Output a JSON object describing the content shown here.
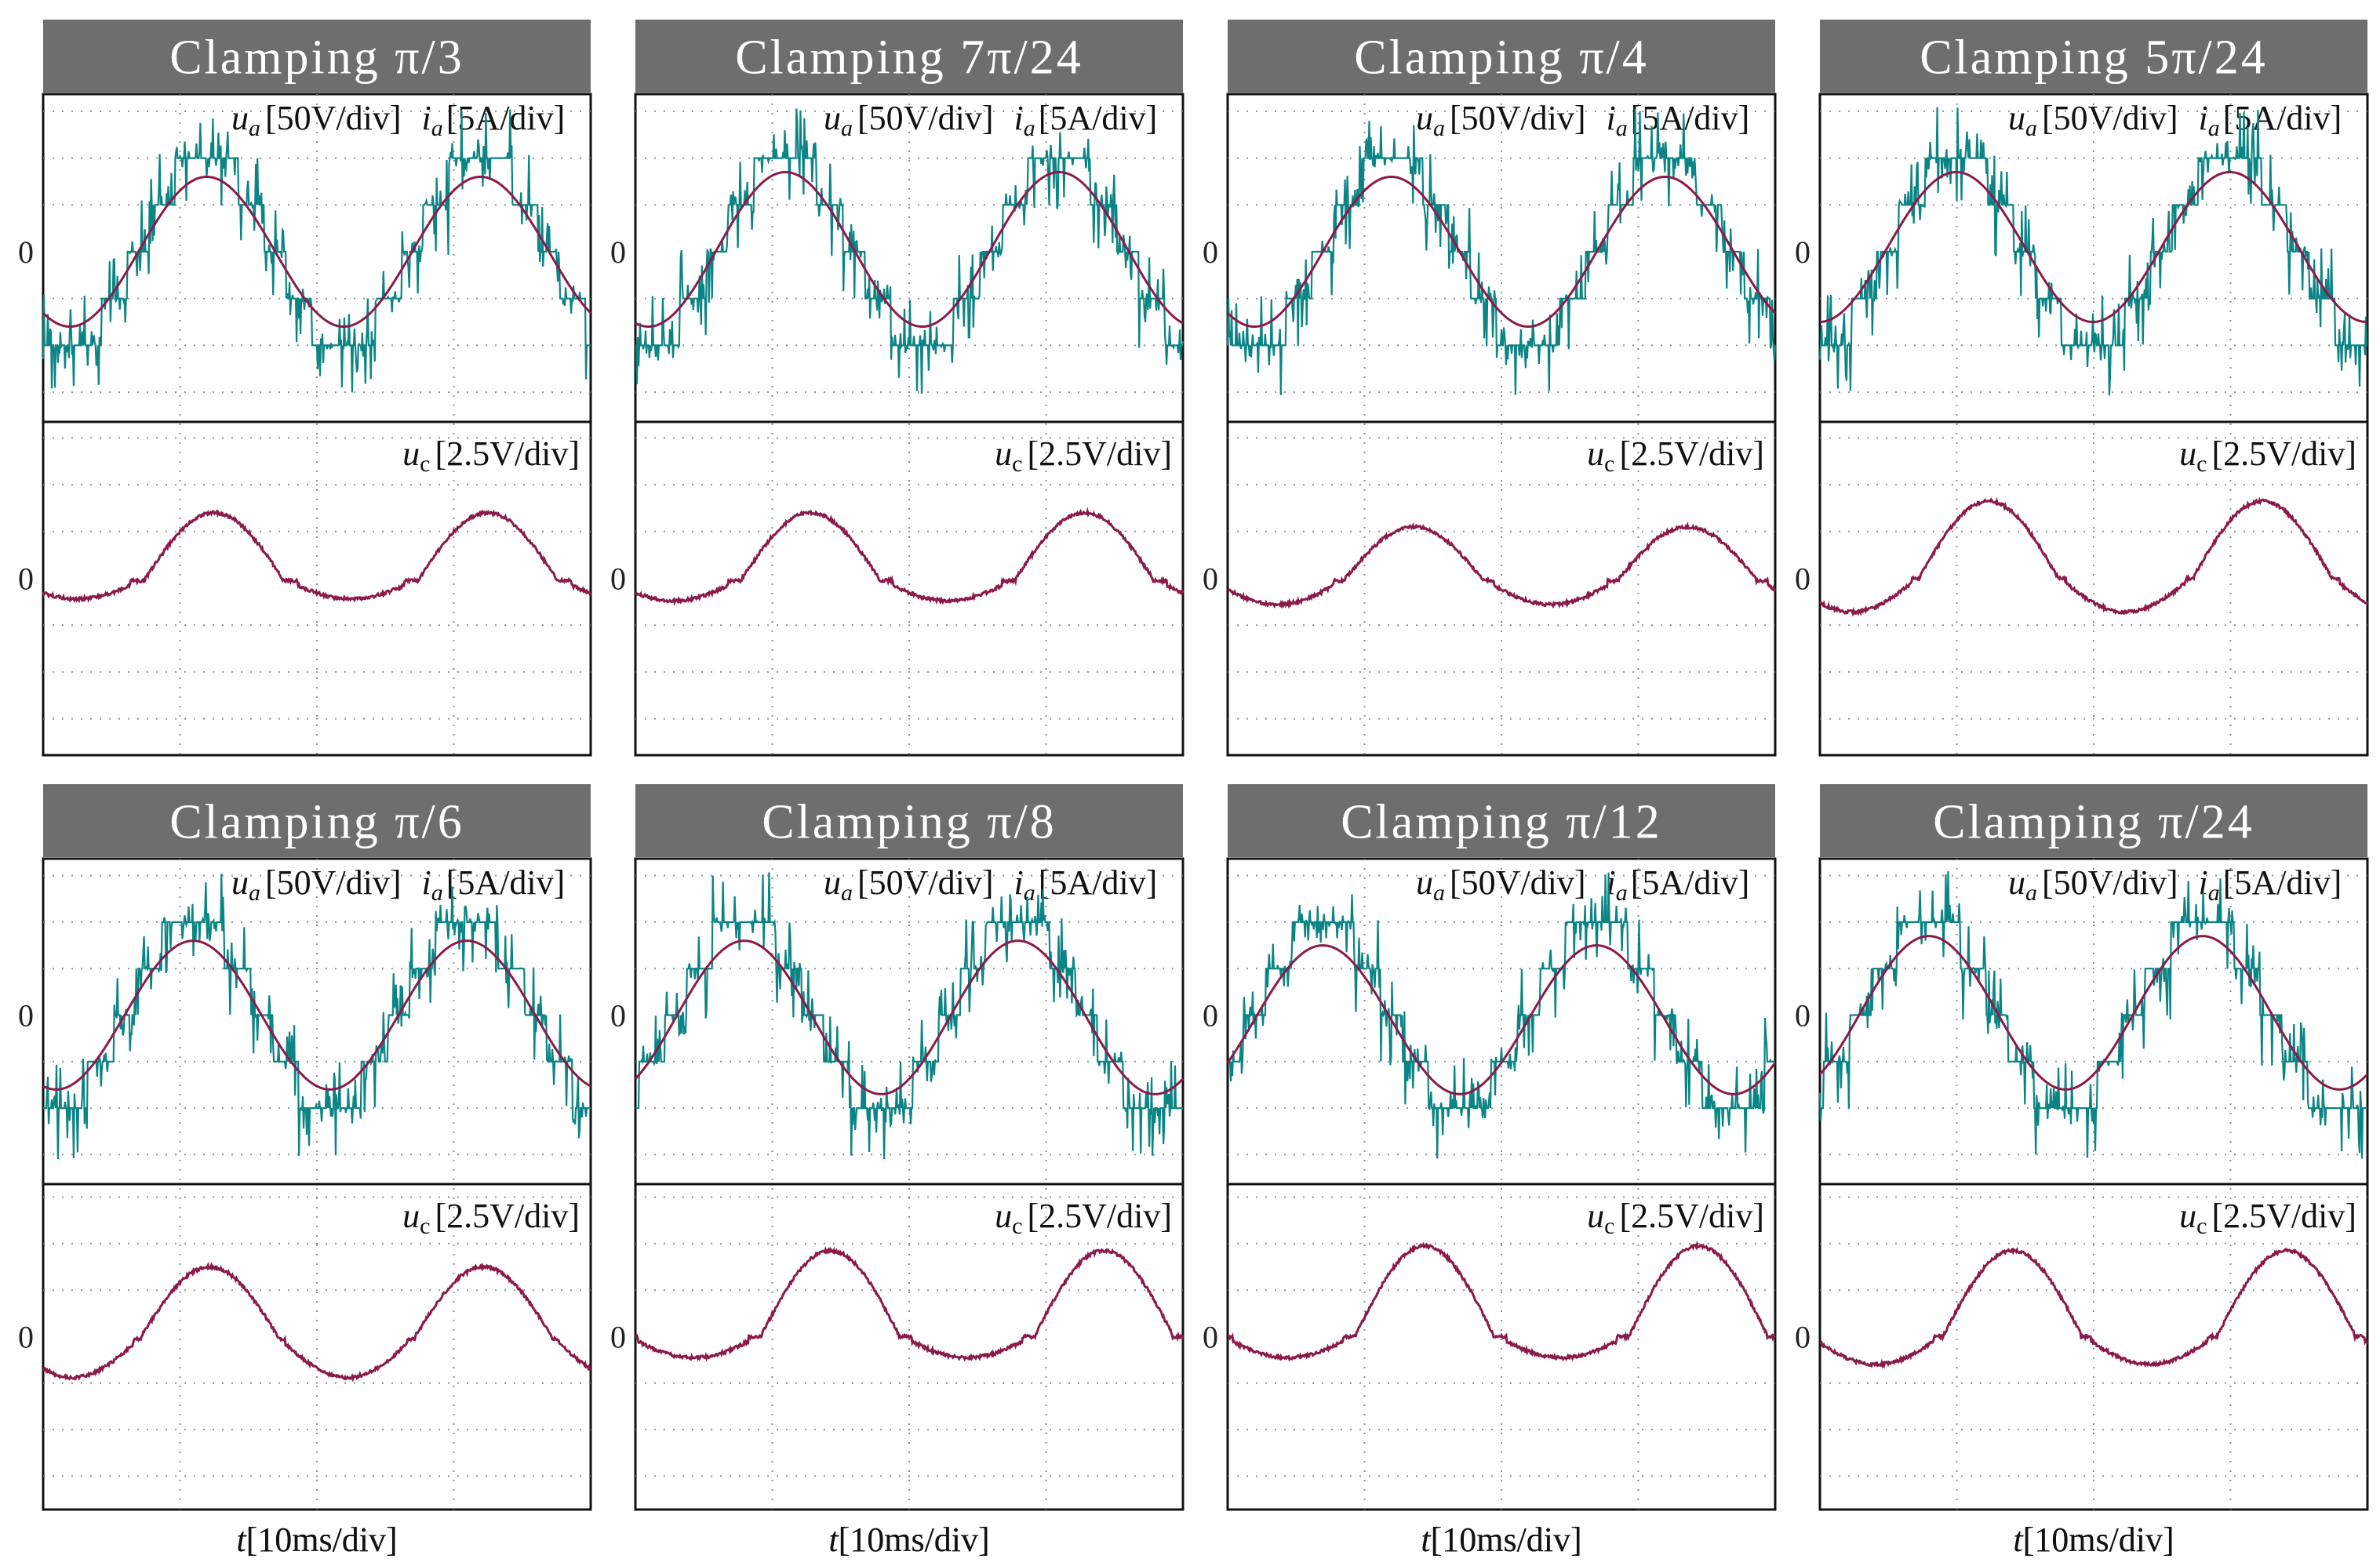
{
  "figure": {
    "voltage_unit_label": "[50V/div]",
    "current_unit_label": "[5A/div]",
    "cap_unit_label": "[2.5V/div]",
    "x_axis_label": "[10ms/div]",
    "zero_label": "0",
    "symbols": {
      "u": "u",
      "a": "a",
      "i": "i",
      "c": "c",
      "t": "t"
    }
  },
  "colors": {
    "phase_voltage": "#0a8484",
    "current": "#8b1a4a",
    "header_bg": "#6e6e6e",
    "grid": "#777777"
  },
  "chart_data": [
    {
      "type": "line",
      "title": "Clamping π/3",
      "clamp_angle": "π/3",
      "series": [
        {
          "name": "u_a",
          "unit": "50V/div"
        },
        {
          "name": "i_a",
          "unit": "5A/div",
          "peak_div": 1.6,
          "min_div": -1.6
        },
        {
          "name": "u_c",
          "unit": "2.5V/div",
          "peak_div": 1.4,
          "min_div": -0.5
        }
      ],
      "x_unit": "10ms/div",
      "xlim": [
        0,
        4
      ],
      "x_divs": 4,
      "period_ms": 20
    },
    {
      "type": "line",
      "title": "Clamping 7π/24",
      "clamp_angle": "7π/24",
      "series": [
        {
          "name": "u_a",
          "unit": "50V/div"
        },
        {
          "name": "i_a",
          "unit": "5A/div",
          "peak_div": 1.7,
          "min_div": -1.6
        },
        {
          "name": "u_c",
          "unit": "2.5V/div",
          "peak_div": 1.4,
          "min_div": -0.6
        }
      ],
      "x_unit": "10ms/div",
      "xlim": [
        0,
        4
      ],
      "x_divs": 4,
      "period_ms": 20
    },
    {
      "type": "line",
      "title": "Clamping π/4",
      "clamp_angle": "π/4",
      "series": [
        {
          "name": "u_a",
          "unit": "50V/div"
        },
        {
          "name": "i_a",
          "unit": "5A/div",
          "peak_div": 1.6,
          "min_div": -1.6
        },
        {
          "name": "u_c",
          "unit": "2.5V/div",
          "peak_div": 1.1,
          "min_div": -1.0
        }
      ],
      "x_unit": "10ms/div",
      "xlim": [
        0,
        4
      ],
      "x_divs": 4,
      "period_ms": 20
    },
    {
      "type": "line",
      "title": "Clamping 5π/24",
      "clamp_angle": "5π/24",
      "series": [
        {
          "name": "u_a",
          "unit": "50V/div"
        },
        {
          "name": "i_a",
          "unit": "5A/div",
          "peak_div": 1.7,
          "min_div": -1.5
        },
        {
          "name": "u_c",
          "unit": "2.5V/div",
          "peak_div": 1.6,
          "min_div": -0.8
        }
      ],
      "x_unit": "10ms/div",
      "xlim": [
        0,
        4
      ],
      "x_divs": 4,
      "period_ms": 20
    },
    {
      "type": "line",
      "title": "Clamping π/6",
      "clamp_angle": "π/6",
      "series": [
        {
          "name": "u_a",
          "unit": "50V/div"
        },
        {
          "name": "i_a",
          "unit": "5A/div",
          "peak_div": 1.6,
          "min_div": -1.6
        },
        {
          "name": "u_c",
          "unit": "2.5V/div",
          "peak_div": 1.5,
          "min_div": -1.0
        }
      ],
      "x_unit": "10ms/div",
      "xlim": [
        0,
        4
      ],
      "x_divs": 4,
      "period_ms": 20
    },
    {
      "type": "line",
      "title": "Clamping π/8",
      "clamp_angle": "π/8",
      "series": [
        {
          "name": "u_a",
          "unit": "50V/div"
        },
        {
          "name": "i_a",
          "unit": "5A/div",
          "peak_div": 1.6,
          "min_div": -1.7
        },
        {
          "name": "u_c",
          "unit": "2.5V/div",
          "peak_div": 1.8,
          "min_div": -0.7
        }
      ],
      "x_unit": "10ms/div",
      "xlim": [
        0,
        4
      ],
      "x_divs": 4,
      "period_ms": 20
    },
    {
      "type": "line",
      "title": "Clamping π/12",
      "clamp_angle": "π/12",
      "series": [
        {
          "name": "u_a",
          "unit": "50V/div"
        },
        {
          "name": "i_a",
          "unit": "5A/div",
          "peak_div": 1.5,
          "min_div": -1.7
        },
        {
          "name": "u_c",
          "unit": "2.5V/div",
          "peak_div": 1.9,
          "min_div": -0.7
        }
      ],
      "x_unit": "10ms/div",
      "xlim": [
        0,
        4
      ],
      "x_divs": 4,
      "period_ms": 20
    },
    {
      "type": "line",
      "title": "Clamping π/24",
      "clamp_angle": "π/24",
      "series": [
        {
          "name": "u_a",
          "unit": "50V/div"
        },
        {
          "name": "i_a",
          "unit": "5A/div",
          "peak_div": 1.7,
          "min_div": -1.6
        },
        {
          "name": "u_c",
          "unit": "2.5V/div",
          "peak_div": 1.8,
          "min_div": -0.9
        }
      ],
      "x_unit": "10ms/div",
      "xlim": [
        0,
        4
      ],
      "x_divs": 4,
      "period_ms": 20
    }
  ]
}
